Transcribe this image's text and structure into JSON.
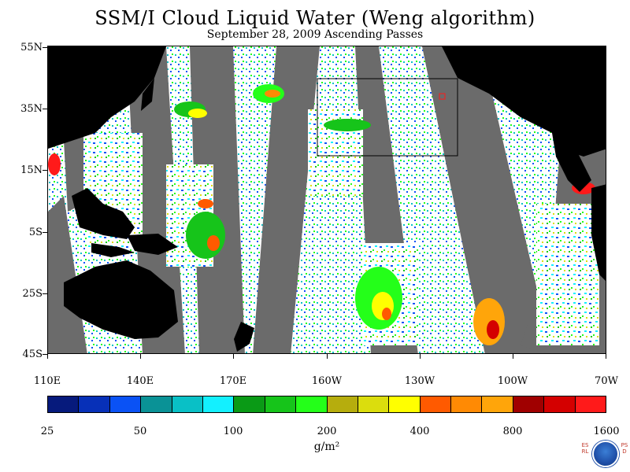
{
  "title": "SSM/I Cloud Liquid Water (Weng algorithm)",
  "subtitle": "September 28, 2009  Ascending Passes",
  "map": {
    "latitude_labels": [
      "55N",
      "35N",
      "15N",
      "5S",
      "25S",
      "45S"
    ],
    "longitude_labels": [
      "110E",
      "140E",
      "170E",
      "160W",
      "130W",
      "100W",
      "70W"
    ],
    "colors": {
      "land": "#000000",
      "no_data_swath_gap": "#6b6b6b",
      "clear": "#ffffff"
    }
  },
  "colorbar": {
    "tick_labels": [
      "25",
      "50",
      "100",
      "200",
      "400",
      "800",
      "1600"
    ],
    "colors": [
      "#061a7c",
      "#0730b8",
      "#0a52f5",
      "#0a9296",
      "#09c0c6",
      "#13f0ff",
      "#0a9a16",
      "#16c41a",
      "#24ff19",
      "#b6ad0d",
      "#dbdd0d",
      "#ffff00",
      "#ff5a00",
      "#ff8a04",
      "#ffa50a",
      "#a00000",
      "#d40000",
      "#ff1a1a"
    ],
    "units": "g/m²"
  },
  "logo": {
    "left_text": "ESRL",
    "right_text": "PSD"
  }
}
